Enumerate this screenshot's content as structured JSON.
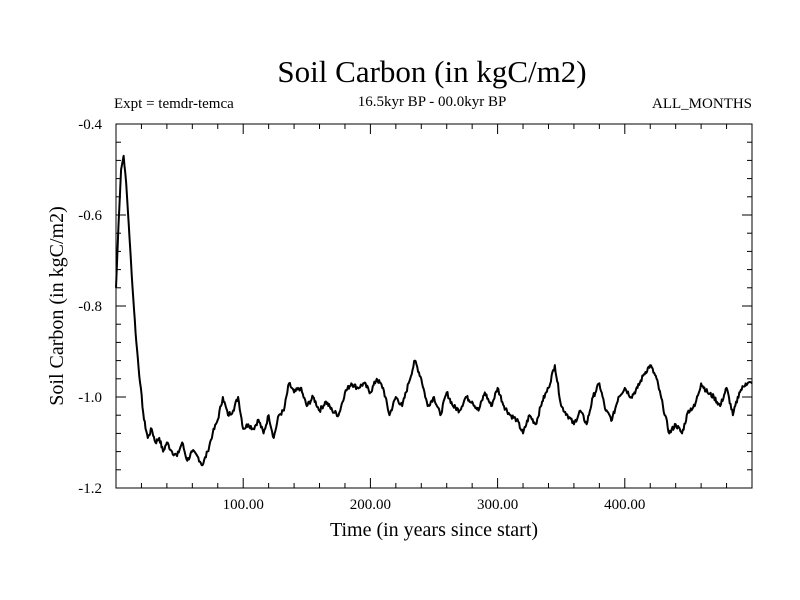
{
  "chart_data": {
    "type": "line",
    "title": "Soil Carbon (in kgC/m2)",
    "subtitle_left": "Expt = temdr-temca",
    "subtitle_center": "16.5kyr BP - 00.0kyr BP",
    "subtitle_right": "ALL_MONTHS",
    "xlabel": "Time (in years since start)",
    "ylabel": "Soil Carbon (in kgC/m2)",
    "xlim": [
      0,
      500
    ],
    "ylim": [
      -1.2,
      -0.4
    ],
    "xticks": [
      100,
      200,
      300,
      400
    ],
    "xtick_labels": [
      "100.00",
      "200.00",
      "300.00",
      "400.00"
    ],
    "yticks": [
      -1.2,
      -1.0,
      -0.8,
      -0.6,
      -0.4
    ],
    "ytick_labels": [
      "-1.2",
      "-1.0",
      "-0.8",
      "-0.6",
      "-0.4"
    ],
    "line_color": "#000000",
    "series": [
      {
        "name": "Soil Carbon",
        "x": [
          0,
          2,
          4,
          6,
          8,
          10,
          13,
          16,
          19,
          22,
          25,
          28,
          31,
          34,
          37,
          40,
          44,
          48,
          52,
          56,
          60,
          64,
          68,
          72,
          76,
          80,
          84,
          88,
          92,
          96,
          100,
          104,
          108,
          112,
          116,
          120,
          124,
          128,
          132,
          136,
          140,
          145,
          150,
          155,
          160,
          165,
          170,
          175,
          180,
          185,
          190,
          195,
          200,
          205,
          210,
          215,
          220,
          225,
          230,
          235,
          240,
          245,
          250,
          255,
          260,
          265,
          270,
          275,
          280,
          285,
          290,
          295,
          300,
          305,
          310,
          315,
          320,
          325,
          330,
          335,
          340,
          345,
          350,
          355,
          360,
          365,
          370,
          375,
          380,
          385,
          390,
          395,
          400,
          405,
          410,
          415,
          420,
          425,
          430,
          435,
          440,
          445,
          450,
          455,
          460,
          465,
          470,
          475,
          480,
          485,
          490,
          495,
          500
        ],
        "y": [
          -0.76,
          -0.62,
          -0.5,
          -0.47,
          -0.53,
          -0.62,
          -0.76,
          -0.88,
          -0.97,
          -1.05,
          -1.09,
          -1.07,
          -1.1,
          -1.09,
          -1.12,
          -1.1,
          -1.12,
          -1.13,
          -1.1,
          -1.14,
          -1.12,
          -1.13,
          -1.15,
          -1.12,
          -1.08,
          -1.05,
          -1.0,
          -1.04,
          -1.03,
          -1.0,
          -1.07,
          -1.06,
          -1.07,
          -1.05,
          -1.08,
          -1.04,
          -1.09,
          -1.04,
          -1.03,
          -0.97,
          -0.99,
          -0.98,
          -1.02,
          -1.0,
          -1.03,
          -1.01,
          -1.03,
          -1.04,
          -0.99,
          -0.97,
          -0.98,
          -0.97,
          -0.99,
          -0.96,
          -0.98,
          -1.04,
          -1.0,
          -1.02,
          -0.97,
          -0.92,
          -0.96,
          -1.02,
          -1.0,
          -1.04,
          -0.99,
          -1.02,
          -1.03,
          -1.0,
          -1.01,
          -1.03,
          -0.99,
          -1.02,
          -0.98,
          -1.02,
          -1.04,
          -1.05,
          -1.08,
          -1.04,
          -1.06,
          -1.01,
          -0.98,
          -0.93,
          -1.02,
          -1.04,
          -1.06,
          -1.03,
          -1.06,
          -1.0,
          -0.97,
          -1.03,
          -1.05,
          -1.0,
          -0.98,
          -1.0,
          -0.98,
          -0.95,
          -0.93,
          -0.96,
          -1.02,
          -1.08,
          -1.06,
          -1.08,
          -1.03,
          -1.02,
          -0.97,
          -0.99,
          -1.0,
          -1.02,
          -0.98,
          -1.04,
          -0.99,
          -0.97,
          -0.97
        ]
      }
    ]
  }
}
